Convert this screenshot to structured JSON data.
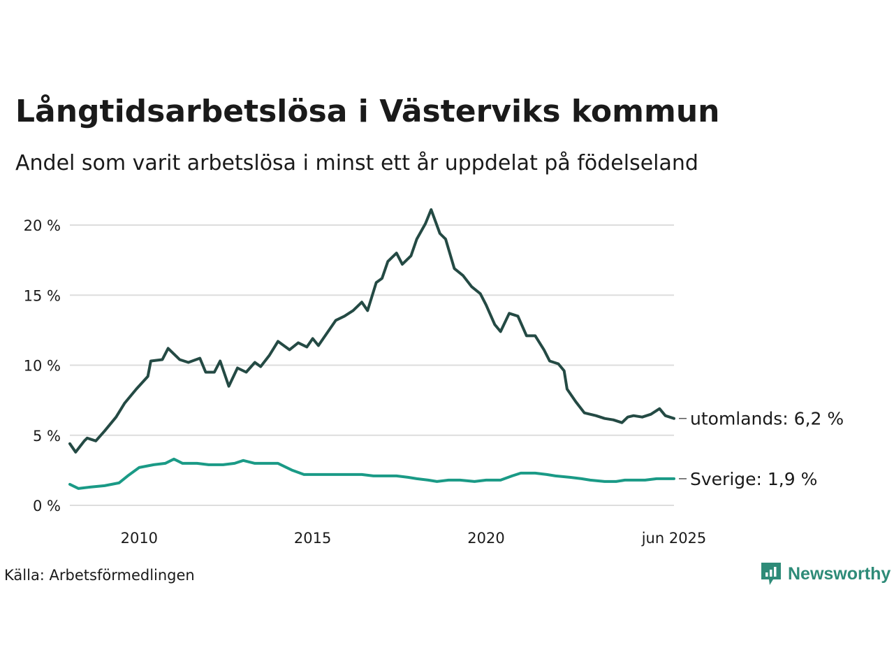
{
  "title": "Långtidsarbetslösa i Västerviks kommun",
  "subtitle": "Andel som varit arbetslösa i minst ett år uppdelat på födelseland",
  "source": "Källa: Arbetsförmedlingen",
  "brand": "Newsworthy",
  "colors": {
    "utomlands": "#244a44",
    "sverige": "#1a9a86",
    "grid": "#dddddd",
    "brand": "#2e8b78"
  },
  "chart_data": {
    "type": "line",
    "title": "Långtidsarbetslösa i Västerviks kommun",
    "subtitle": "Andel som varit arbetslösa i minst ett år uppdelat på födelseland",
    "xlabel": "",
    "ylabel": "",
    "ylim": [
      0,
      21.5
    ],
    "xlim": [
      "2008-01",
      "2025-06"
    ],
    "grid": true,
    "y_ticks": [
      {
        "value": 0,
        "label": "0 %"
      },
      {
        "value": 5,
        "label": "5 %"
      },
      {
        "value": 10,
        "label": "10 %"
      },
      {
        "value": 15,
        "label": "15 %"
      },
      {
        "value": 20,
        "label": "20 %"
      }
    ],
    "x_ticks": [
      {
        "value": "2010-01",
        "label": "2010"
      },
      {
        "value": "2015-01",
        "label": "2015"
      },
      {
        "value": "2020-01",
        "label": "2020"
      },
      {
        "value": "2025-06",
        "label": "jun 2025"
      }
    ],
    "series": [
      {
        "key": "utomlands",
        "end_label": "utomlands: 6,2 %",
        "points": [
          [
            "2008-01",
            4.4
          ],
          [
            "2008-03",
            3.8
          ],
          [
            "2008-06",
            4.6
          ],
          [
            "2008-07",
            4.8
          ],
          [
            "2008-10",
            4.6
          ],
          [
            "2009-01",
            5.3
          ],
          [
            "2009-05",
            6.3
          ],
          [
            "2009-08",
            7.3
          ],
          [
            "2009-12",
            8.3
          ],
          [
            "2010-04",
            9.2
          ],
          [
            "2010-05",
            10.3
          ],
          [
            "2010-09",
            10.4
          ],
          [
            "2010-11",
            11.2
          ],
          [
            "2011-03",
            10.4
          ],
          [
            "2011-06",
            10.2
          ],
          [
            "2011-10",
            10.5
          ],
          [
            "2011-12",
            9.5
          ],
          [
            "2012-03",
            9.5
          ],
          [
            "2012-05",
            10.3
          ],
          [
            "2012-08",
            8.5
          ],
          [
            "2012-11",
            9.8
          ],
          [
            "2013-02",
            9.5
          ],
          [
            "2013-05",
            10.2
          ],
          [
            "2013-07",
            9.9
          ],
          [
            "2013-10",
            10.7
          ],
          [
            "2014-01",
            11.7
          ],
          [
            "2014-05",
            11.1
          ],
          [
            "2014-08",
            11.6
          ],
          [
            "2014-11",
            11.3
          ],
          [
            "2015-01",
            11.9
          ],
          [
            "2015-03",
            11.4
          ],
          [
            "2015-06",
            12.3
          ],
          [
            "2015-09",
            13.2
          ],
          [
            "2015-12",
            13.5
          ],
          [
            "2016-03",
            13.9
          ],
          [
            "2016-06",
            14.5
          ],
          [
            "2016-08",
            13.9
          ],
          [
            "2016-11",
            15.9
          ],
          [
            "2017-01",
            16.2
          ],
          [
            "2017-03",
            17.4
          ],
          [
            "2017-06",
            18.0
          ],
          [
            "2017-08",
            17.2
          ],
          [
            "2017-11",
            17.8
          ],
          [
            "2018-01",
            19.0
          ],
          [
            "2018-04",
            20.1
          ],
          [
            "2018-06",
            21.1
          ],
          [
            "2018-09",
            19.4
          ],
          [
            "2018-11",
            19.0
          ],
          [
            "2019-02",
            16.9
          ],
          [
            "2019-05",
            16.4
          ],
          [
            "2019-08",
            15.6
          ],
          [
            "2019-11",
            15.1
          ],
          [
            "2020-01",
            14.3
          ],
          [
            "2020-04",
            12.9
          ],
          [
            "2020-06",
            12.4
          ],
          [
            "2020-09",
            13.7
          ],
          [
            "2020-12",
            13.5
          ],
          [
            "2021-03",
            12.1
          ],
          [
            "2021-06",
            12.1
          ],
          [
            "2021-09",
            11.1
          ],
          [
            "2021-11",
            10.3
          ],
          [
            "2022-02",
            10.1
          ],
          [
            "2022-04",
            9.6
          ],
          [
            "2022-05",
            8.3
          ],
          [
            "2022-08",
            7.4
          ],
          [
            "2022-11",
            6.6
          ],
          [
            "2023-03",
            6.4
          ],
          [
            "2023-06",
            6.2
          ],
          [
            "2023-09",
            6.1
          ],
          [
            "2023-12",
            5.9
          ],
          [
            "2024-02",
            6.3
          ],
          [
            "2024-04",
            6.4
          ],
          [
            "2024-07",
            6.3
          ],
          [
            "2024-10",
            6.5
          ],
          [
            "2025-01",
            6.9
          ],
          [
            "2025-03",
            6.4
          ],
          [
            "2025-06",
            6.2
          ]
        ]
      },
      {
        "key": "sverige",
        "end_label": "Sverige: 1,9 %",
        "points": [
          [
            "2008-01",
            1.5
          ],
          [
            "2008-04",
            1.2
          ],
          [
            "2008-08",
            1.3
          ],
          [
            "2009-01",
            1.4
          ],
          [
            "2009-06",
            1.6
          ],
          [
            "2009-09",
            2.1
          ],
          [
            "2010-01",
            2.7
          ],
          [
            "2010-06",
            2.9
          ],
          [
            "2010-10",
            3.0
          ],
          [
            "2011-01",
            3.3
          ],
          [
            "2011-04",
            3.0
          ],
          [
            "2011-09",
            3.0
          ],
          [
            "2012-01",
            2.9
          ],
          [
            "2012-06",
            2.9
          ],
          [
            "2012-10",
            3.0
          ],
          [
            "2013-01",
            3.2
          ],
          [
            "2013-05",
            3.0
          ],
          [
            "2013-09",
            3.0
          ],
          [
            "2014-01",
            3.0
          ],
          [
            "2014-06",
            2.5
          ],
          [
            "2014-10",
            2.2
          ],
          [
            "2015-01",
            2.2
          ],
          [
            "2015-06",
            2.2
          ],
          [
            "2015-10",
            2.2
          ],
          [
            "2016-01",
            2.2
          ],
          [
            "2016-06",
            2.2
          ],
          [
            "2016-10",
            2.1
          ],
          [
            "2017-01",
            2.1
          ],
          [
            "2017-06",
            2.1
          ],
          [
            "2017-10",
            2.0
          ],
          [
            "2018-01",
            1.9
          ],
          [
            "2018-05",
            1.8
          ],
          [
            "2018-08",
            1.7
          ],
          [
            "2018-12",
            1.8
          ],
          [
            "2019-04",
            1.8
          ],
          [
            "2019-09",
            1.7
          ],
          [
            "2020-01",
            1.8
          ],
          [
            "2020-06",
            1.8
          ],
          [
            "2020-10",
            2.1
          ],
          [
            "2021-01",
            2.3
          ],
          [
            "2021-06",
            2.3
          ],
          [
            "2021-10",
            2.2
          ],
          [
            "2022-01",
            2.1
          ],
          [
            "2022-06",
            2.0
          ],
          [
            "2022-10",
            1.9
          ],
          [
            "2023-01",
            1.8
          ],
          [
            "2023-06",
            1.7
          ],
          [
            "2023-10",
            1.7
          ],
          [
            "2024-01",
            1.8
          ],
          [
            "2024-04",
            1.8
          ],
          [
            "2024-08",
            1.8
          ],
          [
            "2024-12",
            1.9
          ],
          [
            "2025-03",
            1.9
          ],
          [
            "2025-06",
            1.9
          ]
        ]
      }
    ]
  }
}
